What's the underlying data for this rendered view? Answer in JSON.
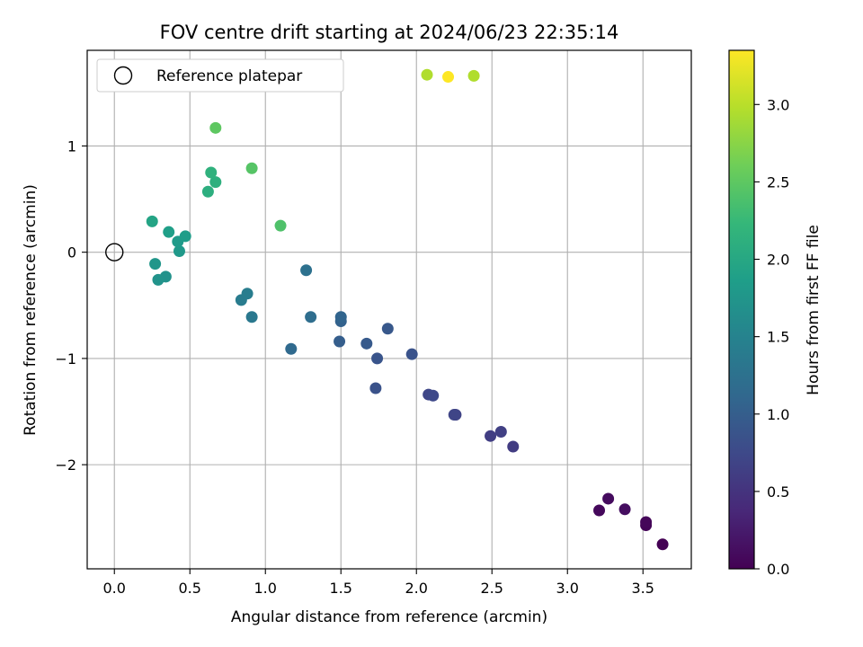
{
  "chart_data": {
    "type": "scatter",
    "title": "FOV centre drift starting at 2024/06/23 22:35:14",
    "xlabel": "Angular distance from reference (arcmin)",
    "ylabel": "Rotation from reference (arcmin)",
    "xlim": [
      -0.18,
      3.82
    ],
    "ylim": [
      -2.98,
      1.9
    ],
    "xticks": [
      0.0,
      0.5,
      1.0,
      1.5,
      2.0,
      2.5,
      3.0,
      3.5
    ],
    "xtick_labels": [
      "0.0",
      "0.5",
      "1.0",
      "1.5",
      "2.0",
      "2.5",
      "3.0",
      "3.5"
    ],
    "yticks": [
      1,
      0,
      -1,
      -2
    ],
    "ytick_labels": [
      "1",
      "0",
      "−1",
      "−2"
    ],
    "grid": true,
    "legend": {
      "position": "top-left",
      "entries": [
        {
          "label": "Reference platepar",
          "marker": "open-circle"
        }
      ]
    },
    "reference_point": {
      "x": 0.0,
      "y": 0.0
    },
    "colorbar": {
      "label": "Hours from first FF file",
      "colormap": "viridis",
      "range": [
        0.0,
        3.35
      ],
      "ticks": [
        0.0,
        0.5,
        1.0,
        1.5,
        2.0,
        2.5,
        3.0
      ],
      "tick_labels": [
        "0.0",
        "0.5",
        "1.0",
        "1.5",
        "2.0",
        "2.5",
        "3.0"
      ],
      "gradient_colors": [
        "#440154",
        "#482878",
        "#3e4989",
        "#31688e",
        "#26828e",
        "#1f9e89",
        "#35b779",
        "#6ece58",
        "#b5de2b",
        "#fde725"
      ]
    },
    "points": [
      {
        "x": 3.63,
        "y": -2.75,
        "c": 0.0
      },
      {
        "x": 3.52,
        "y": -2.57,
        "c": 0.03
      },
      {
        "x": 3.52,
        "y": -2.54,
        "c": 0.05
      },
      {
        "x": 3.21,
        "y": -2.43,
        "c": 0.07
      },
      {
        "x": 3.27,
        "y": -2.32,
        "c": 0.1
      },
      {
        "x": 3.38,
        "y": -2.42,
        "c": 0.12
      },
      {
        "x": 2.64,
        "y": -1.83,
        "c": 0.6
      },
      {
        "x": 2.49,
        "y": -1.73,
        "c": 0.62
      },
      {
        "x": 2.56,
        "y": -1.69,
        "c": 0.64
      },
      {
        "x": 2.26,
        "y": -1.53,
        "c": 0.68
      },
      {
        "x": 2.25,
        "y": -1.53,
        "c": 0.7
      },
      {
        "x": 2.08,
        "y": -1.34,
        "c": 0.72
      },
      {
        "x": 2.11,
        "y": -1.35,
        "c": 0.74
      },
      {
        "x": 1.73,
        "y": -1.28,
        "c": 0.85
      },
      {
        "x": 1.74,
        "y": -1.0,
        "c": 0.88
      },
      {
        "x": 1.97,
        "y": -0.96,
        "c": 0.86
      },
      {
        "x": 1.67,
        "y": -0.86,
        "c": 0.95
      },
      {
        "x": 1.81,
        "y": -0.72,
        "c": 0.92
      },
      {
        "x": 1.49,
        "y": -0.84,
        "c": 1.0
      },
      {
        "x": 1.5,
        "y": -0.65,
        "c": 1.05
      },
      {
        "x": 1.5,
        "y": -0.61,
        "c": 1.08
      },
      {
        "x": 1.17,
        "y": -0.91,
        "c": 1.15
      },
      {
        "x": 1.3,
        "y": -0.61,
        "c": 1.2
      },
      {
        "x": 1.27,
        "y": -0.17,
        "c": 1.25
      },
      {
        "x": 0.91,
        "y": -0.61,
        "c": 1.35
      },
      {
        "x": 0.84,
        "y": -0.45,
        "c": 1.4
      },
      {
        "x": 0.88,
        "y": -0.39,
        "c": 1.42
      },
      {
        "x": 0.34,
        "y": -0.23,
        "c": 1.7
      },
      {
        "x": 0.29,
        "y": -0.26,
        "c": 1.72
      },
      {
        "x": 0.27,
        "y": -0.11,
        "c": 1.75
      },
      {
        "x": 0.43,
        "y": 0.01,
        "c": 1.8
      },
      {
        "x": 0.42,
        "y": 0.1,
        "c": 1.82
      },
      {
        "x": 0.47,
        "y": 0.15,
        "c": 1.85
      },
      {
        "x": 0.36,
        "y": 0.19,
        "c": 1.88
      },
      {
        "x": 0.25,
        "y": 0.29,
        "c": 1.95
      },
      {
        "x": 0.62,
        "y": 0.57,
        "c": 2.1
      },
      {
        "x": 0.67,
        "y": 0.66,
        "c": 2.12
      },
      {
        "x": 0.64,
        "y": 0.75,
        "c": 2.15
      },
      {
        "x": 1.1,
        "y": 0.25,
        "c": 2.4
      },
      {
        "x": 0.91,
        "y": 0.79,
        "c": 2.45
      },
      {
        "x": 0.67,
        "y": 1.17,
        "c": 2.5
      },
      {
        "x": 2.07,
        "y": 1.67,
        "c": 2.95
      },
      {
        "x": 2.38,
        "y": 1.66,
        "c": 2.95
      },
      {
        "x": 2.21,
        "y": 1.65,
        "c": 3.35
      }
    ]
  }
}
